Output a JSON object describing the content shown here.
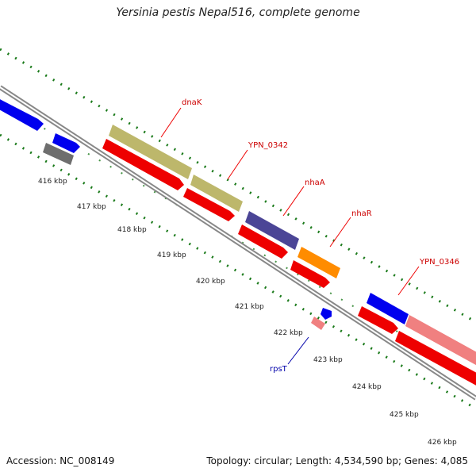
{
  "title": "Yersinia pestis Nepal516, complete genome",
  "footer": {
    "accession": "Accession: NC_008149",
    "summary": "Topology: circular; Length: 4,534,590 bp; Genes: 4,085"
  },
  "colors": {
    "backbone": "#888888",
    "ticks": "#1a7a1a",
    "tick_label": "#222222",
    "gene_label": "#cc0000",
    "rna_label": "#0000aa"
  },
  "ticks": [
    "416 kbp",
    "417 kbp",
    "418 kbp",
    "419 kbp",
    "420 kbp",
    "421 kbp",
    "422 kbp",
    "423 kbp",
    "424 kbp",
    "425 kbp",
    "426 kbp"
  ],
  "genes": [
    {
      "name": "dnaK",
      "color": "#bdb76b"
    },
    {
      "name": "YPN_0342",
      "color": "#bdb76b"
    },
    {
      "name": "nhaA",
      "color": "#4b4596"
    },
    {
      "name": "nhaR",
      "color": "#ff8c00"
    },
    {
      "name": "YPN_0346",
      "color": "#f08080"
    },
    {
      "name": "rpsT",
      "color": "#f08080"
    }
  ]
}
